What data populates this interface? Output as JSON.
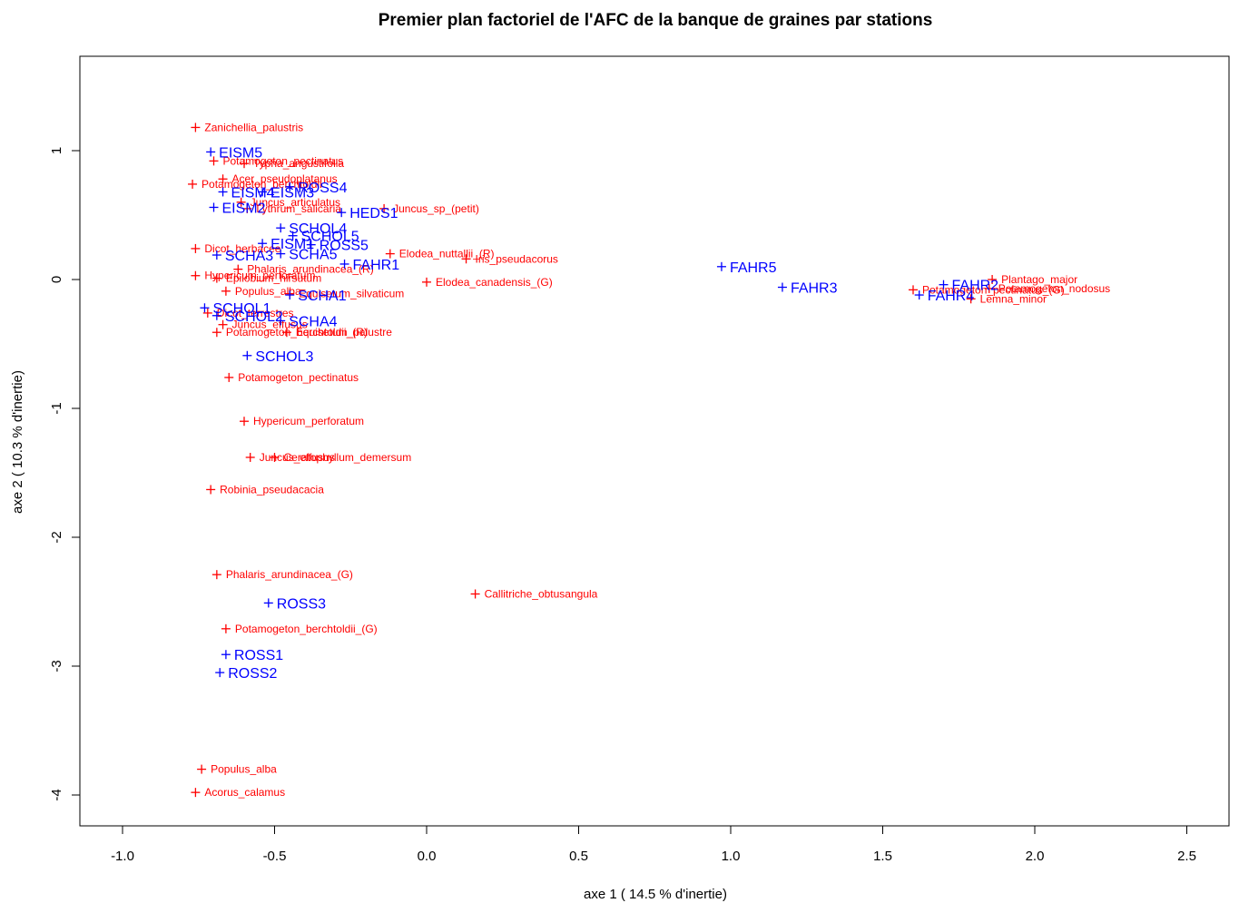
{
  "chart_data": {
    "type": "scatter",
    "title": "Premier plan factoriel de l'AFC de la banque de graines par stations",
    "xlabel": "axe 1 ( 14.5 % d'inertie)",
    "ylabel": "axe 2 ( 10.3 % d'inertie)",
    "xlim": [
      -1.15,
      2.5
    ],
    "ylim": [
      -4.2,
      1.7
    ],
    "xticks": [
      -1.0,
      -0.5,
      0.0,
      0.5,
      1.0,
      1.5,
      2.0,
      2.5
    ],
    "xtick_labels": [
      "-1.0",
      "-0.5",
      "0.0",
      "0.5",
      "1.0",
      "1.5",
      "2.0",
      "2.5"
    ],
    "yticks": [
      -4,
      -3,
      -2,
      -1,
      0,
      1
    ],
    "ytick_labels": [
      "-4",
      "-3",
      "-2",
      "-1",
      "0",
      "1"
    ],
    "grid": false,
    "colors": {
      "species": "#ff0000",
      "stations": "#0000ff"
    },
    "series": [
      {
        "color": "#ff0000",
        "points": [
          {
            "label": "Zanichellia_palustris",
            "x": -0.76,
            "y": 1.18
          },
          {
            "label": "Potamogeton_pectinatus",
            "x": -0.7,
            "y": 0.92
          },
          {
            "label": "Typha_angustifolia",
            "x": -0.6,
            "y": 0.9
          },
          {
            "label": "Acer_pseudoplatanus",
            "x": -0.67,
            "y": 0.78
          },
          {
            "label": "Potamogeton_berchtoldii",
            "x": -0.77,
            "y": 0.74
          },
          {
            "label": "Juncus_articulatus",
            "x": -0.61,
            "y": 0.6
          },
          {
            "label": "Lythrum_salicaria",
            "x": -0.59,
            "y": 0.55
          },
          {
            "label": "Juncus_sp_(petit)",
            "x": -0.14,
            "y": 0.55
          },
          {
            "label": "Dicot_herbacee",
            "x": -0.76,
            "y": 0.24
          },
          {
            "label": "Elodea_nuttallii_(R)",
            "x": -0.12,
            "y": 0.2
          },
          {
            "label": "Iris_pseudacorus",
            "x": 0.13,
            "y": 0.16
          },
          {
            "label": "Phalaris_arundinacea_(R)",
            "x": -0.62,
            "y": 0.08
          },
          {
            "label": "Hypericum_perforatum",
            "x": -0.76,
            "y": 0.03
          },
          {
            "label": "Epilobium_hirsutum",
            "x": -0.69,
            "y": 0.01
          },
          {
            "label": "Populus_alba",
            "x": -0.66,
            "y": -0.09
          },
          {
            "label": "Equisetum_silvaticum",
            "x": -0.45,
            "y": -0.11
          },
          {
            "label": "Dicot_terrestres",
            "x": -0.72,
            "y": -0.26
          },
          {
            "label": "Juncus_effusus",
            "x": -0.67,
            "y": -0.35
          },
          {
            "label": "Potamogeton_berchtoldii_(R)",
            "x": -0.69,
            "y": -0.41
          },
          {
            "label": "Equisetum_palustre",
            "x": -0.46,
            "y": -0.41
          },
          {
            "label": "Potamogeton_pectinatus",
            "x": -0.65,
            "y": -0.76
          },
          {
            "label": "Hypericum_perforatum",
            "x": -0.6,
            "y": -1.1
          },
          {
            "label": "Juncus_effusus",
            "x": -0.58,
            "y": -1.38
          },
          {
            "label": "Ceratophyllum_demersum",
            "x": -0.5,
            "y": -1.38
          },
          {
            "label": "Robinia_pseudacacia",
            "x": -0.71,
            "y": -1.63
          },
          {
            "label": "Phalaris_arundinacea_(G)",
            "x": -0.69,
            "y": -2.29
          },
          {
            "label": "Callitriche_obtusangula",
            "x": 0.16,
            "y": -2.44
          },
          {
            "label": "Potamogeton_berchtoldii_(G)",
            "x": -0.66,
            "y": -2.71
          },
          {
            "label": "Populus_alba",
            "x": -0.74,
            "y": -3.8
          },
          {
            "label": "Acorus_calamus",
            "x": -0.76,
            "y": -3.98
          },
          {
            "label": "Elodea_canadensis_(G)",
            "x": 0.0,
            "y": -0.02
          },
          {
            "label": "Potamogeton_pectinatus_(G)",
            "x": 1.6,
            "y": -0.08
          },
          {
            "label": "Potamogeton_nodosus",
            "x": 1.85,
            "y": -0.07
          },
          {
            "label": "Plantago_major",
            "x": 1.86,
            "y": 0.0
          },
          {
            "label": "Lemna_minor",
            "x": 1.79,
            "y": -0.15
          }
        ]
      },
      {
        "color": "#0000ff",
        "points": [
          {
            "label": "EISM5",
            "x": -0.71,
            "y": 0.99
          },
          {
            "label": "EISM4",
            "x": -0.67,
            "y": 0.68
          },
          {
            "label": "EISM3",
            "x": -0.54,
            "y": 0.68
          },
          {
            "label": "EISM2",
            "x": -0.7,
            "y": 0.56
          },
          {
            "label": "ROSS4",
            "x": -0.45,
            "y": 0.72
          },
          {
            "label": "HEDS1",
            "x": -0.28,
            "y": 0.52
          },
          {
            "label": "SCHOL4",
            "x": -0.48,
            "y": 0.4
          },
          {
            "label": "SCHOL5",
            "x": -0.44,
            "y": 0.34
          },
          {
            "label": "EISM1",
            "x": -0.54,
            "y": 0.28
          },
          {
            "label": "ROSS5",
            "x": -0.38,
            "y": 0.27
          },
          {
            "label": "SCHA3",
            "x": -0.69,
            "y": 0.19
          },
          {
            "label": "SCHA5",
            "x": -0.48,
            "y": 0.2
          },
          {
            "label": "FAHR1",
            "x": -0.27,
            "y": 0.12
          },
          {
            "label": "SCHA1",
            "x": -0.45,
            "y": -0.12
          },
          {
            "label": "SCHOL1",
            "x": -0.73,
            "y": -0.22
          },
          {
            "label": "SCHOL2",
            "x": -0.69,
            "y": -0.28
          },
          {
            "label": "SCHA4",
            "x": -0.48,
            "y": -0.32
          },
          {
            "label": "SCHOL3",
            "x": -0.59,
            "y": -0.59
          },
          {
            "label": "ROSS3",
            "x": -0.52,
            "y": -2.51
          },
          {
            "label": "ROSS1",
            "x": -0.66,
            "y": -2.91
          },
          {
            "label": "ROSS2",
            "x": -0.68,
            "y": -3.05
          },
          {
            "label": "FAHR5",
            "x": 0.97,
            "y": 0.1
          },
          {
            "label": "FAHR3",
            "x": 1.17,
            "y": -0.06
          },
          {
            "label": "FAHR2",
            "x": 1.7,
            "y": -0.04
          },
          {
            "label": "FAHR4",
            "x": 1.62,
            "y": -0.12
          }
        ]
      }
    ]
  }
}
